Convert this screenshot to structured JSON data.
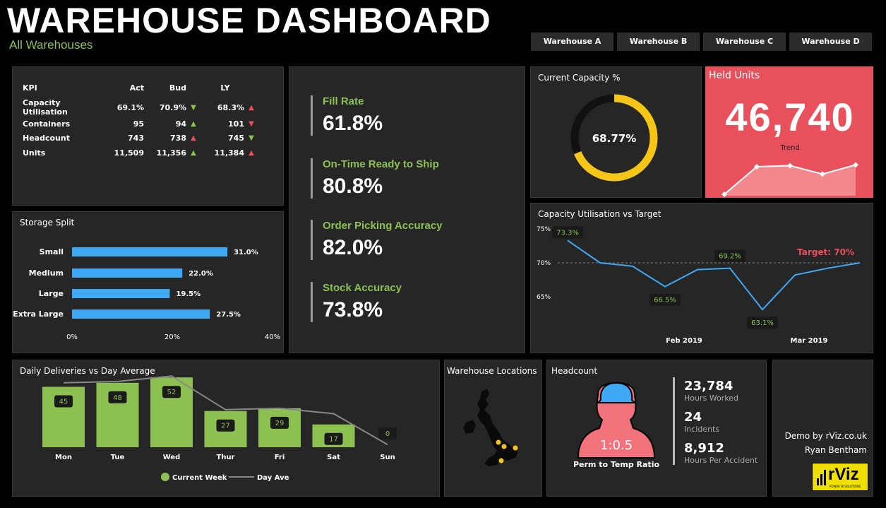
{
  "header": {
    "title": "WAREHOUSE DASHBOARD",
    "subtitle": "All Warehouses"
  },
  "tabs": [
    "Warehouse A",
    "Warehouse B",
    "Warehouse C",
    "Warehouse D"
  ],
  "kpi": {
    "headers": [
      "KPI",
      "Act",
      "Bud",
      "LY"
    ],
    "rows": [
      {
        "name": "Capacity Utilisation",
        "act": "69.1%",
        "bud": "70.9%",
        "bud_trend": "down",
        "ly": "68.3%",
        "ly_trend": "up-red"
      },
      {
        "name": "Containers",
        "act": "95",
        "bud": "94",
        "bud_trend": "up",
        "ly": "101",
        "ly_trend": "down-red"
      },
      {
        "name": "Headcount",
        "act": "743",
        "bud": "738",
        "bud_trend": "up-red",
        "ly": "745",
        "ly_trend": "down"
      },
      {
        "name": "Units",
        "act": "11,509",
        "bud": "11,356",
        "bud_trend": "up",
        "ly": "11,384",
        "ly_trend": "up-red"
      }
    ],
    "colors": {
      "good": "#8cc152",
      "bad": "#e8505b"
    }
  },
  "metrics": [
    {
      "label": "Fill Rate",
      "value": "61.8%"
    },
    {
      "label": "On-Time Ready to Ship",
      "value": "80.8%"
    },
    {
      "label": "Order Picking Accuracy",
      "value": "82.0%"
    },
    {
      "label": "Stock Accuracy",
      "value": "73.8%"
    }
  ],
  "capacity": {
    "title": "Current Capacity %",
    "value_label": "68.77%",
    "value": 68.77,
    "color": "#f5c518"
  },
  "held": {
    "title": "Held Units",
    "value": "46,740",
    "trend_label": "Trend",
    "color": "#e8505b",
    "trend": [
      0,
      0.75,
      0.78,
      0.55,
      0.8
    ]
  },
  "storage": {
    "title": "Storage Split",
    "chart_data": {
      "type": "bar",
      "categories": [
        "Small",
        "Medium",
        "Large",
        "Extra Large"
      ],
      "values": [
        31.0,
        22.0,
        19.5,
        27.5
      ],
      "value_labels": [
        "31.0%",
        "22.0%",
        "19.5%",
        "27.5%"
      ],
      "xlim": [
        0,
        40
      ],
      "ticks": [
        "0%",
        "20%",
        "40%"
      ],
      "color": "#3fa9f5"
    }
  },
  "util": {
    "title": "Capacity Utilisation vs Target",
    "chart_data": {
      "type": "line",
      "y_ticks": [
        "75%",
        "70%",
        "65%"
      ],
      "ylim": [
        60,
        75
      ],
      "values": [
        73.3,
        70.0,
        69.5,
        66.5,
        69.0,
        69.2,
        63.1,
        68.2,
        69.2,
        70.0
      ],
      "labels": {
        "0": "73.3%",
        "3": "66.5%",
        "5": "69.2%",
        "6": "63.1%"
      },
      "target": 70,
      "target_label": "Target: 70%",
      "x_labels": [
        "Feb 2019",
        "Mar 2019"
      ],
      "color": "#3fa9f5"
    }
  },
  "deliveries": {
    "title": "Daily Deliveries vs Day Average",
    "chart_data": {
      "type": "bar",
      "categories": [
        "Mon",
        "Tue",
        "Wed",
        "Thur",
        "Fri",
        "Sat",
        "Sun"
      ],
      "series": [
        {
          "name": "Current Week",
          "values": [
            45,
            48,
            52,
            27,
            29,
            17,
            0
          ]
        },
        {
          "name": "Day Ave",
          "values": [
            48,
            49,
            53,
            28,
            29,
            25,
            2
          ]
        }
      ],
      "ylim": [
        0,
        60
      ],
      "bar_color": "#8cc152",
      "line_color": "#888888"
    }
  },
  "locations": {
    "title": "Warehouse Locations"
  },
  "headcount": {
    "title": "Headcount",
    "ratio": "1:0.5",
    "ratio_label": "Perm to Temp Ratio",
    "stats": [
      {
        "value": "23,784",
        "label": "Hours Worked"
      },
      {
        "value": "24",
        "label": "Incidents"
      },
      {
        "value": "8,912",
        "label": "Hours Per Accident"
      }
    ]
  },
  "credit": {
    "line1": "Demo by rViz.co.uk",
    "line2": "Ryan Bentham",
    "logo": "rViz",
    "logo_tag": "POWER BI SOLUTIONS"
  }
}
